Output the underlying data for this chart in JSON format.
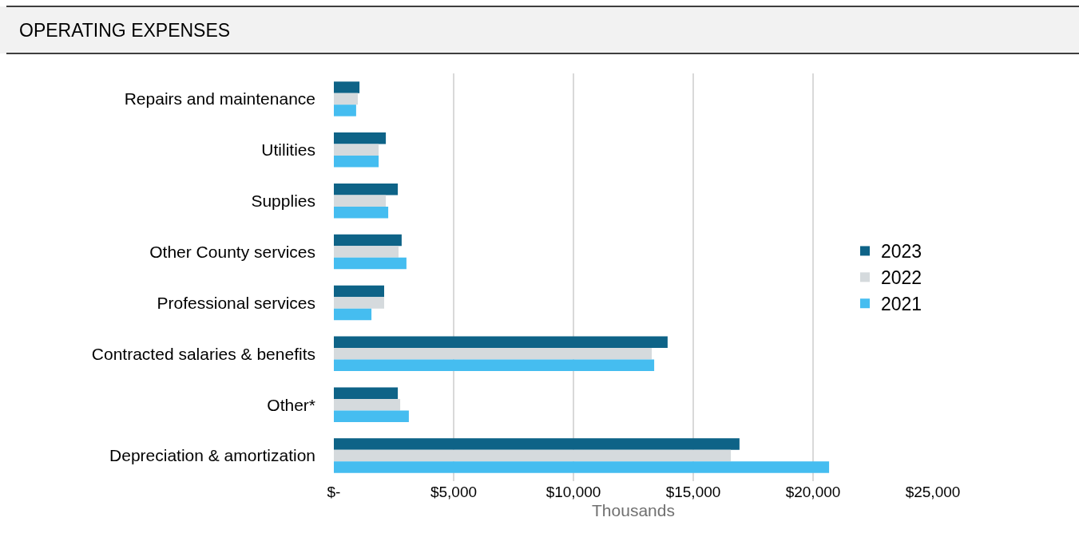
{
  "chart_data": {
    "type": "bar",
    "orientation": "horizontal",
    "title": "OPERATING EXPENSES",
    "xlabel": "Thousands",
    "categories": [
      "Repairs and maintenance",
      "Utilities",
      "Supplies",
      "Other County services",
      "Professional services",
      "Contracted salaries & benefits",
      "Other*",
      "Depreciation & amortization"
    ],
    "series": [
      {
        "name": "2023",
        "color": "#0e6387",
        "values": [
          1070,
          2170,
          2670,
          2830,
          2100,
          13930,
          2670,
          16930
        ]
      },
      {
        "name": "2022",
        "color": "#d5dadd",
        "values": [
          1000,
          1870,
          2170,
          2700,
          2100,
          13270,
          2770,
          16570
        ]
      },
      {
        "name": "2021",
        "color": "#45bdf0",
        "values": [
          930,
          1870,
          2270,
          3030,
          1570,
          13370,
          3130,
          20670
        ]
      }
    ],
    "xlim": [
      0,
      25000
    ],
    "xticks": [
      {
        "value": 0,
        "label": "$-"
      },
      {
        "value": 5000,
        "label": "$5,000"
      },
      {
        "value": 10000,
        "label": "$10,000"
      },
      {
        "value": 15000,
        "label": "$15,000"
      },
      {
        "value": 20000,
        "label": "$20,000"
      },
      {
        "value": 25000,
        "label": "$25,000"
      }
    ],
    "grid": "x",
    "legend": "right"
  }
}
